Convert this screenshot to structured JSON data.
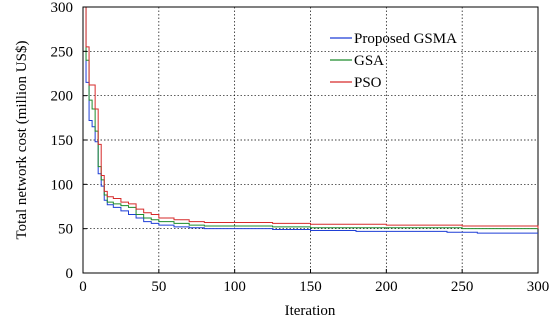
{
  "chart_data": {
    "type": "line",
    "title": "",
    "xlabel": "Iteration",
    "ylabel": "Total network cost (million US$)",
    "xlim": [
      0,
      300
    ],
    "ylim": [
      0,
      300
    ],
    "x_ticks": [
      0,
      50,
      100,
      150,
      200,
      250,
      300
    ],
    "y_ticks": [
      0,
      50,
      100,
      150,
      200,
      250,
      300
    ],
    "grid": true,
    "grid_style": "dotted",
    "legend_position": "top-right",
    "series": [
      {
        "name": "Proposed GSMA",
        "color": "#1f3fd6",
        "points": [
          [
            0,
            300
          ],
          [
            2,
            215
          ],
          [
            4,
            172
          ],
          [
            6,
            165
          ],
          [
            8,
            148
          ],
          [
            10,
            112
          ],
          [
            12,
            98
          ],
          [
            14,
            82
          ],
          [
            16,
            77
          ],
          [
            20,
            74
          ],
          [
            25,
            70
          ],
          [
            30,
            66
          ],
          [
            35,
            62
          ],
          [
            40,
            58
          ],
          [
            45,
            56
          ],
          [
            50,
            54
          ],
          [
            60,
            52
          ],
          [
            70,
            51
          ],
          [
            80,
            50
          ],
          [
            100,
            50
          ],
          [
            125,
            49
          ],
          [
            150,
            48
          ],
          [
            180,
            47
          ],
          [
            200,
            47
          ],
          [
            240,
            46
          ],
          [
            260,
            45
          ],
          [
            280,
            45
          ],
          [
            300,
            45
          ]
        ]
      },
      {
        "name": "GSA",
        "color": "#1e8c2c",
        "points": [
          [
            0,
            300
          ],
          [
            2,
            240
          ],
          [
            4,
            195
          ],
          [
            6,
            185
          ],
          [
            8,
            160
          ],
          [
            10,
            120
          ],
          [
            12,
            105
          ],
          [
            14,
            88
          ],
          [
            16,
            80
          ],
          [
            20,
            78
          ],
          [
            25,
            76
          ],
          [
            30,
            74
          ],
          [
            35,
            66
          ],
          [
            40,
            62
          ],
          [
            45,
            60
          ],
          [
            50,
            58
          ],
          [
            60,
            56
          ],
          [
            70,
            54
          ],
          [
            80,
            53
          ],
          [
            100,
            53
          ],
          [
            125,
            52
          ],
          [
            150,
            51
          ],
          [
            200,
            51
          ],
          [
            250,
            50
          ],
          [
            300,
            50
          ]
        ]
      },
      {
        "name": "PSO",
        "color": "#d62a2a",
        "points": [
          [
            0,
            300
          ],
          [
            2,
            255
          ],
          [
            4,
            212
          ],
          [
            6,
            212
          ],
          [
            8,
            185
          ],
          [
            10,
            145
          ],
          [
            12,
            110
          ],
          [
            14,
            92
          ],
          [
            16,
            86
          ],
          [
            20,
            84
          ],
          [
            25,
            80
          ],
          [
            30,
            78
          ],
          [
            35,
            72
          ],
          [
            40,
            68
          ],
          [
            45,
            66
          ],
          [
            50,
            62
          ],
          [
            60,
            60
          ],
          [
            70,
            58
          ],
          [
            80,
            57
          ],
          [
            100,
            57
          ],
          [
            125,
            56
          ],
          [
            150,
            55
          ],
          [
            200,
            54
          ],
          [
            250,
            53
          ],
          [
            300,
            50
          ]
        ]
      }
    ]
  }
}
